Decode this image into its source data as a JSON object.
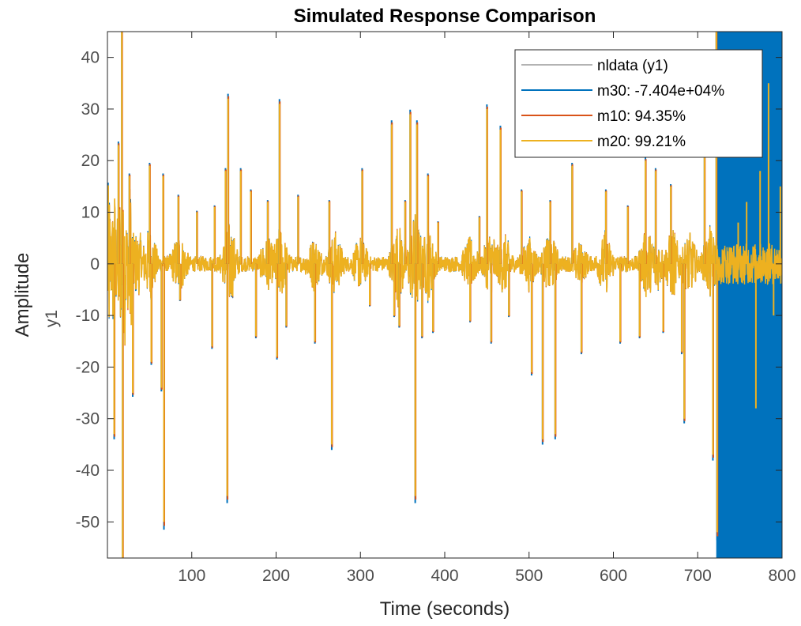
{
  "chart_data": {
    "type": "line",
    "title": "Simulated Response Comparison",
    "xlabel": "Time (seconds)",
    "ylabel": "Amplitude",
    "channel_label": "y1",
    "xlim": [
      0,
      800
    ],
    "ylim": [
      -57,
      45
    ],
    "x_ticks": [
      100,
      200,
      300,
      400,
      500,
      600,
      700,
      800
    ],
    "y_ticks": [
      40,
      30,
      20,
      10,
      0,
      -10,
      -20,
      -30,
      -40,
      -50
    ],
    "grid": false,
    "legend_position": "top-right",
    "series": [
      {
        "name": "nldata (y1)",
        "color": "#b3b3b3"
      },
      {
        "name": "m30: -7.404e+04%",
        "color": "#0072bd",
        "note": "diverges after about t = 722 s and fills the plot range to t = 800",
        "divergence_start": 722
      },
      {
        "name": "m10: 94.35%",
        "color": "#d95319"
      },
      {
        "name": "m20: 99.21%",
        "color": "#edb120"
      }
    ],
    "spikes": [
      {
        "x": 8,
        "y": -33
      },
      {
        "x": 13,
        "y": 23
      },
      {
        "x": 17,
        "y": 46
      },
      {
        "x": 18,
        "y": -57
      },
      {
        "x": 26,
        "y": 17
      },
      {
        "x": 30,
        "y": -25
      },
      {
        "x": 50,
        "y": 19
      },
      {
        "x": 52,
        "y": -19
      },
      {
        "x": 64,
        "y": -24
      },
      {
        "x": 66,
        "y": 17
      },
      {
        "x": 67,
        "y": -50
      },
      {
        "x": 84,
        "y": 13
      },
      {
        "x": 86,
        "y": -7
      },
      {
        "x": 106,
        "y": 10
      },
      {
        "x": 124,
        "y": -16
      },
      {
        "x": 127,
        "y": 11
      },
      {
        "x": 140,
        "y": 18
      },
      {
        "x": 142,
        "y": -45
      },
      {
        "x": 143,
        "y": 32
      },
      {
        "x": 158,
        "y": 18
      },
      {
        "x": 170,
        "y": 14
      },
      {
        "x": 176,
        "y": -14
      },
      {
        "x": 190,
        "y": 12
      },
      {
        "x": 201,
        "y": -18
      },
      {
        "x": 204,
        "y": 31
      },
      {
        "x": 212,
        "y": -12
      },
      {
        "x": 226,
        "y": 13
      },
      {
        "x": 246,
        "y": -15
      },
      {
        "x": 263,
        "y": 12
      },
      {
        "x": 266,
        "y": -35
      },
      {
        "x": 302,
        "y": 18
      },
      {
        "x": 311,
        "y": -8
      },
      {
        "x": 340,
        "y": -10
      },
      {
        "x": 337,
        "y": 27
      },
      {
        "x": 346,
        "y": -12
      },
      {
        "x": 353,
        "y": 12
      },
      {
        "x": 359,
        "y": 29
      },
      {
        "x": 365,
        "y": -45
      },
      {
        "x": 367,
        "y": 27
      },
      {
        "x": 373,
        "y": -14
      },
      {
        "x": 380,
        "y": 17
      },
      {
        "x": 386,
        "y": -13
      },
      {
        "x": 392,
        "y": 8
      },
      {
        "x": 430,
        "y": -11
      },
      {
        "x": 441,
        "y": 9
      },
      {
        "x": 450,
        "y": 30
      },
      {
        "x": 455,
        "y": -15
      },
      {
        "x": 466,
        "y": 26
      },
      {
        "x": 476,
        "y": -10
      },
      {
        "x": 491,
        "y": 14
      },
      {
        "x": 503,
        "y": -21
      },
      {
        "x": 516,
        "y": -34
      },
      {
        "x": 525,
        "y": 12
      },
      {
        "x": 531,
        "y": -33
      },
      {
        "x": 551,
        "y": 19
      },
      {
        "x": 562,
        "y": -17
      },
      {
        "x": 591,
        "y": 14
      },
      {
        "x": 608,
        "y": -15
      },
      {
        "x": 617,
        "y": 11
      },
      {
        "x": 631,
        "y": -14
      },
      {
        "x": 638,
        "y": 20
      },
      {
        "x": 650,
        "y": 18
      },
      {
        "x": 659,
        "y": -13
      },
      {
        "x": 668,
        "y": 15
      },
      {
        "x": 681,
        "y": -17
      },
      {
        "x": 684,
        "y": -30
      },
      {
        "x": 708,
        "y": 25
      },
      {
        "x": 718,
        "y": -37
      },
      {
        "x": 722,
        "y": 45
      },
      {
        "x": 723,
        "y": -52
      }
    ],
    "post_divergence_reference": [
      {
        "x": 735,
        "y": 2
      },
      {
        "x": 748,
        "y": 8
      },
      {
        "x": 758,
        "y": 12
      },
      {
        "x": 769,
        "y": -28
      },
      {
        "x": 774,
        "y": 18
      },
      {
        "x": 784,
        "y": 35
      },
      {
        "x": 790,
        "y": -10
      },
      {
        "x": 798,
        "y": 15
      }
    ]
  }
}
